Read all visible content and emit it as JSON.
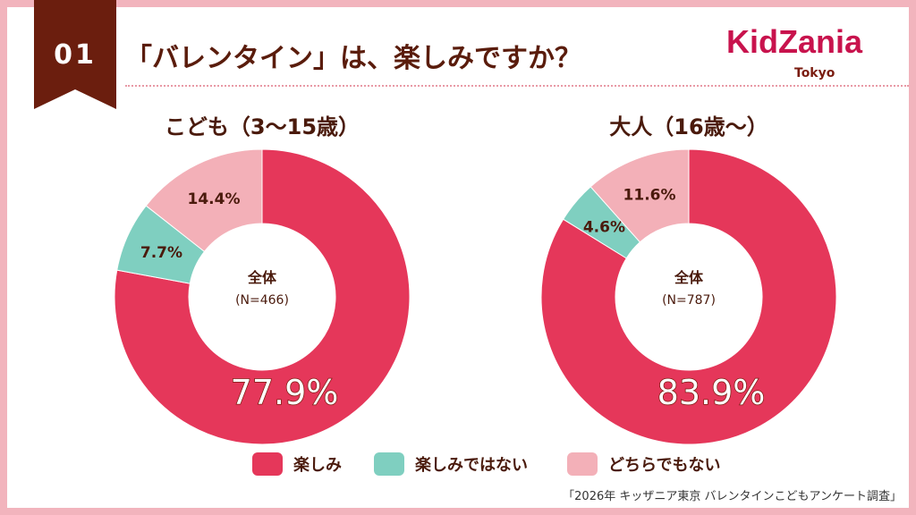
{
  "badge": "01",
  "title": "「バレンタイン」は、楽しみですか？",
  "logo": {
    "name": "KidZania",
    "sub": "Tokyo"
  },
  "colors": {
    "楽しみ": "#e5375a",
    "楽しみではない": "#7fcfc0",
    "どちらでもない": "#f3b0b8"
  },
  "chart_data": [
    {
      "type": "pie",
      "donut": true,
      "title": "こども（3〜15歳）",
      "center_label": "全体",
      "center_n": "(N=466)",
      "categories": [
        "楽しみ",
        "楽しみではない",
        "どちらでもない"
      ],
      "values": [
        77.9,
        7.7,
        14.4
      ],
      "labels": [
        "77.9%",
        "7.7%",
        "14.4%"
      ]
    },
    {
      "type": "pie",
      "donut": true,
      "title": "大人（16歳〜）",
      "center_label": "全体",
      "center_n": "(N=787)",
      "categories": [
        "楽しみ",
        "楽しみではない",
        "どちらでもない"
      ],
      "values": [
        83.9,
        4.6,
        11.6
      ],
      "labels": [
        "83.9%",
        "4.6%",
        "11.6%"
      ]
    }
  ],
  "legend": [
    "楽しみ",
    "楽しみではない",
    "どちらでもない"
  ],
  "source": "「2026年 キッザニア東京 バレンタインこどもアンケート調査」"
}
